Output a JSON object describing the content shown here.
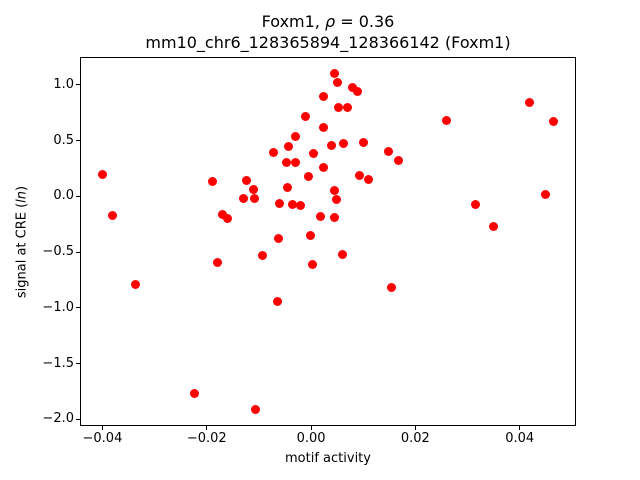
{
  "title": {
    "part1": "Foxm1, ",
    "rho": "ρ",
    "part2": " = 0.36"
  },
  "subtitle": "mm10_chr6_128365894_128366142 (Foxm1)",
  "ylabel_parts": {
    "pre": "signal at CRE (",
    "italic": "ln",
    "post": ")"
  },
  "chart_data": {
    "type": "scatter",
    "title": "Foxm1, ρ = 0.36",
    "subtitle": "mm10_chr6_128365894_128366142 (Foxm1)",
    "xlabel": "motif activity",
    "ylabel": "signal at CRE (ln)",
    "xlim": [
      -0.0443,
      0.0508
    ],
    "ylim": [
      -2.06,
      1.25
    ],
    "xticks": [
      -0.04,
      -0.02,
      0.0,
      0.02,
      0.04
    ],
    "yticks": [
      1.0,
      0.5,
      0.0,
      -0.5,
      -1.0,
      -1.5,
      -2.0
    ],
    "xtick_labels": [
      "−0.04",
      "−0.02",
      "0.00",
      "0.02",
      "0.04"
    ],
    "ytick_labels": [
      "1.0",
      "0.5",
      "0.0",
      "−0.5",
      "−1.0",
      "−1.5",
      "−2.0"
    ],
    "grid": false,
    "legend": null,
    "marker_color": "#ff0000",
    "marker_diameter_px": 9,
    "points": [
      [
        -0.04,
        0.2
      ],
      [
        -0.038,
        -0.17
      ],
      [
        -0.0337,
        -0.79
      ],
      [
        -0.0223,
        -1.77
      ],
      [
        -0.0188,
        0.13
      ],
      [
        -0.018,
        -0.59
      ],
      [
        -0.0169,
        -0.16
      ],
      [
        -0.016,
        -0.2
      ],
      [
        -0.0129,
        -0.02
      ],
      [
        -0.0124,
        0.14
      ],
      [
        -0.011,
        0.06
      ],
      [
        -0.0108,
        -0.02
      ],
      [
        -0.0106,
        -1.91
      ],
      [
        -0.0093,
        -0.53
      ],
      [
        -0.0072,
        0.39
      ],
      [
        -0.0065,
        -0.94
      ],
      [
        -0.0063,
        -0.38
      ],
      [
        -0.0061,
        -0.06
      ],
      [
        -0.0048,
        0.3
      ],
      [
        -0.0045,
        0.08
      ],
      [
        -0.0043,
        0.45
      ],
      [
        -0.0035,
        -0.07
      ],
      [
        -0.003,
        0.54
      ],
      [
        -0.0029,
        0.3
      ],
      [
        -0.0021,
        -0.08
      ],
      [
        -0.0011,
        0.72
      ],
      [
        -0.0005,
        0.18
      ],
      [
        -0.0001,
        -0.35
      ],
      [
        0.0003,
        -0.61
      ],
      [
        0.0005,
        0.38
      ],
      [
        0.0018,
        -0.18
      ],
      [
        0.0024,
        0.9
      ],
      [
        0.0024,
        0.62
      ],
      [
        0.0024,
        0.26
      ],
      [
        0.004,
        0.46
      ],
      [
        0.0045,
        1.1
      ],
      [
        0.0045,
        0.05
      ],
      [
        0.0045,
        -0.19
      ],
      [
        0.0049,
        -0.03
      ],
      [
        0.005,
        1.02
      ],
      [
        0.0053,
        0.8
      ],
      [
        0.006,
        -0.52
      ],
      [
        0.0063,
        0.47
      ],
      [
        0.007,
        0.8
      ],
      [
        0.008,
        0.98
      ],
      [
        0.009,
        0.94
      ],
      [
        0.0093,
        0.19
      ],
      [
        0.01,
        0.48
      ],
      [
        0.011,
        0.15
      ],
      [
        0.0149,
        0.4
      ],
      [
        0.0154,
        -0.82
      ],
      [
        0.0167,
        0.32
      ],
      [
        0.026,
        0.68
      ],
      [
        0.0315,
        -0.07
      ],
      [
        0.035,
        -0.27
      ],
      [
        0.0418,
        0.84
      ],
      [
        0.045,
        0.02
      ],
      [
        0.0464,
        0.67
      ]
    ]
  }
}
